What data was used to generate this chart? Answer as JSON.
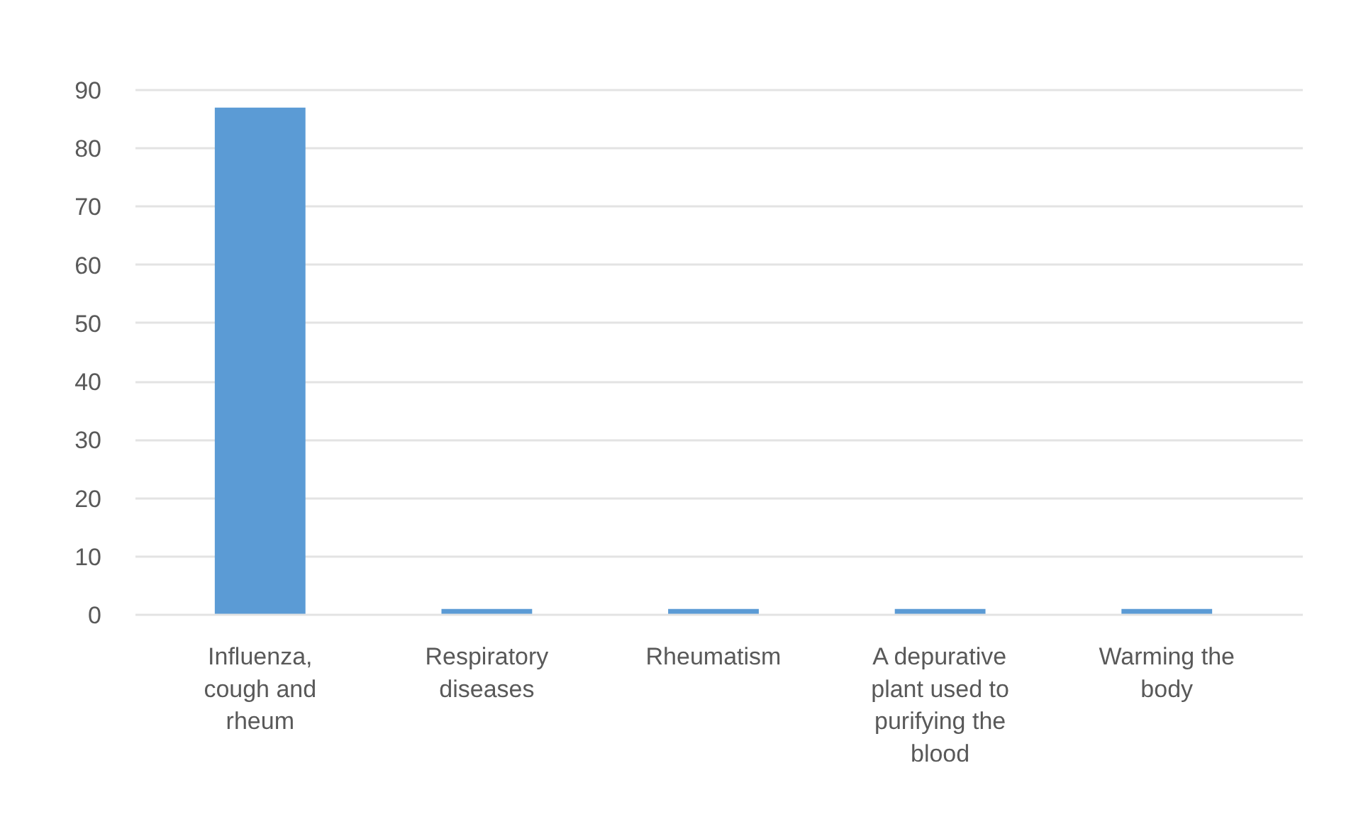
{
  "chart_data": {
    "type": "bar",
    "categories": [
      "Influenza, cough and rheum",
      "Respiratory diseases",
      "Rheumatism",
      "A depurative plant used to purifying the blood",
      "Warming the body"
    ],
    "values": [
      87,
      1,
      1,
      1,
      1
    ],
    "color": "#5b9bd5",
    "ylim": [
      0,
      90
    ],
    "yticks": [
      0,
      10,
      20,
      30,
      40,
      50,
      60,
      70,
      80,
      90
    ],
    "grid": "y"
  }
}
